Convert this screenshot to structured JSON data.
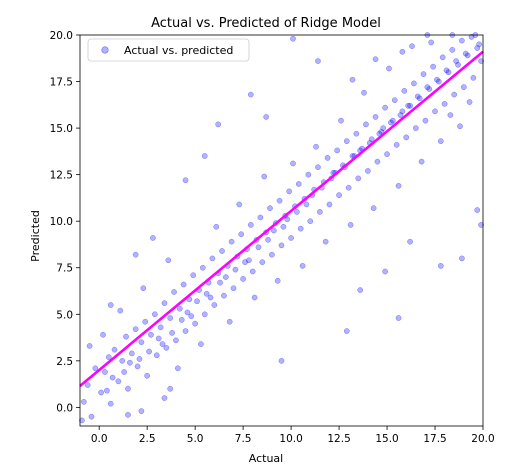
{
  "chart_data": {
    "type": "scatter",
    "title": "Actual vs. Predicted of Ridge Model",
    "xlabel": "Actual",
    "ylabel": "Predicted",
    "xlim": [
      -1.0,
      20.0
    ],
    "ylim": [
      -1.0,
      20.0
    ],
    "x_ticks": [
      0.0,
      2.5,
      5.0,
      7.5,
      10.0,
      12.5,
      15.0,
      17.5,
      20.0
    ],
    "y_ticks": [
      0.0,
      2.5,
      5.0,
      7.5,
      10.0,
      12.5,
      15.0,
      17.5,
      20.0
    ],
    "x_tick_labels": [
      "0.0",
      "2.5",
      "5.0",
      "7.5",
      "10.0",
      "12.5",
      "15.0",
      "17.5",
      "20.0"
    ],
    "y_tick_labels": [
      "0.0",
      "2.5",
      "5.0",
      "7.5",
      "10.0",
      "12.5",
      "15.0",
      "17.5",
      "20.0"
    ],
    "grid": false,
    "legend_position": "top-left",
    "series": [
      {
        "name": "Actual vs. predicted",
        "marker_color": "#0000ff",
        "marker_alpha": 0.3,
        "points": [
          [
            -0.8,
            0.3
          ],
          [
            -0.6,
            1.2
          ],
          [
            -0.4,
            -0.5
          ],
          [
            -0.2,
            2.1
          ],
          [
            0.1,
            0.8
          ],
          [
            0.3,
            1.9
          ],
          [
            0.5,
            2.7
          ],
          [
            0.6,
            0.2
          ],
          [
            0.8,
            3.1
          ],
          [
            1.0,
            1.4
          ],
          [
            1.2,
            2.5
          ],
          [
            1.4,
            3.8
          ],
          [
            1.5,
            1.0
          ],
          [
            1.7,
            2.9
          ],
          [
            1.9,
            4.2
          ],
          [
            2.0,
            2.2
          ],
          [
            2.2,
            3.5
          ],
          [
            2.4,
            4.6
          ],
          [
            2.5,
            1.7
          ],
          [
            2.7,
            3.9
          ],
          [
            2.9,
            5.0
          ],
          [
            3.0,
            2.8
          ],
          [
            3.2,
            4.3
          ],
          [
            3.4,
            5.6
          ],
          [
            3.5,
            3.2
          ],
          [
            3.7,
            4.8
          ],
          [
            3.9,
            6.2
          ],
          [
            4.0,
            3.6
          ],
          [
            4.2,
            5.3
          ],
          [
            4.4,
            6.6
          ],
          [
            4.5,
            4.1
          ],
          [
            4.7,
            5.8
          ],
          [
            4.9,
            7.1
          ],
          [
            5.0,
            4.5
          ],
          [
            5.2,
            6.3
          ],
          [
            5.4,
            7.5
          ],
          [
            5.5,
            5.0
          ],
          [
            5.7,
            6.7
          ],
          [
            5.9,
            8.0
          ],
          [
            6.0,
            5.5
          ],
          [
            6.2,
            7.2
          ],
          [
            6.4,
            8.4
          ],
          [
            6.5,
            6.0
          ],
          [
            6.7,
            7.6
          ],
          [
            6.9,
            8.9
          ],
          [
            7.0,
            6.4
          ],
          [
            7.2,
            8.1
          ],
          [
            7.4,
            9.3
          ],
          [
            7.5,
            6.9
          ],
          [
            7.7,
            8.5
          ],
          [
            7.9,
            9.8
          ],
          [
            8.0,
            7.3
          ],
          [
            8.2,
            9.0
          ],
          [
            8.4,
            10.2
          ],
          [
            8.5,
            7.8
          ],
          [
            8.7,
            9.4
          ],
          [
            8.9,
            10.7
          ],
          [
            9.0,
            8.2
          ],
          [
            9.2,
            9.9
          ],
          [
            9.4,
            11.1
          ],
          [
            9.5,
            8.7
          ],
          [
            9.7,
            10.3
          ],
          [
            9.9,
            11.6
          ],
          [
            10.0,
            9.1
          ],
          [
            10.2,
            10.8
          ],
          [
            10.4,
            12.0
          ],
          [
            10.5,
            9.6
          ],
          [
            10.7,
            11.2
          ],
          [
            10.9,
            12.5
          ],
          [
            11.0,
            10.0
          ],
          [
            11.2,
            11.7
          ],
          [
            11.4,
            12.9
          ],
          [
            11.5,
            10.5
          ],
          [
            11.7,
            12.1
          ],
          [
            11.9,
            13.4
          ],
          [
            12.0,
            10.9
          ],
          [
            12.2,
            12.6
          ],
          [
            12.4,
            13.8
          ],
          [
            12.5,
            11.4
          ],
          [
            12.7,
            13.0
          ],
          [
            12.9,
            14.3
          ],
          [
            13.0,
            11.8
          ],
          [
            13.2,
            13.5
          ],
          [
            13.4,
            14.7
          ],
          [
            13.5,
            12.3
          ],
          [
            13.7,
            13.9
          ],
          [
            13.9,
            15.2
          ],
          [
            14.0,
            12.7
          ],
          [
            14.2,
            14.4
          ],
          [
            14.4,
            15.6
          ],
          [
            14.5,
            13.2
          ],
          [
            14.7,
            14.8
          ],
          [
            14.9,
            16.1
          ],
          [
            15.0,
            13.6
          ],
          [
            15.2,
            15.3
          ],
          [
            15.4,
            16.5
          ],
          [
            15.5,
            14.1
          ],
          [
            15.7,
            15.7
          ],
          [
            15.9,
            17.0
          ],
          [
            16.0,
            14.5
          ],
          [
            16.2,
            16.2
          ],
          [
            16.4,
            17.4
          ],
          [
            16.5,
            15.0
          ],
          [
            16.7,
            16.6
          ],
          [
            16.9,
            17.9
          ],
          [
            17.0,
            15.4
          ],
          [
            17.2,
            17.1
          ],
          [
            17.4,
            18.3
          ],
          [
            17.5,
            15.9
          ],
          [
            17.7,
            17.5
          ],
          [
            17.9,
            18.8
          ],
          [
            18.0,
            16.3
          ],
          [
            18.2,
            18.0
          ],
          [
            18.4,
            19.2
          ],
          [
            18.5,
            16.8
          ],
          [
            18.7,
            18.4
          ],
          [
            18.9,
            19.7
          ],
          [
            19.0,
            17.2
          ],
          [
            19.2,
            18.9
          ],
          [
            19.4,
            19.9
          ],
          [
            19.5,
            17.7
          ],
          [
            19.7,
            19.3
          ],
          [
            19.9,
            18.6
          ],
          [
            0.2,
            3.9
          ],
          [
            1.1,
            5.2
          ],
          [
            2.3,
            6.4
          ],
          [
            3.6,
            7.9
          ],
          [
            4.1,
            2.1
          ],
          [
            5.3,
            3.4
          ],
          [
            6.1,
            9.7
          ],
          [
            6.8,
            4.6
          ],
          [
            7.3,
            10.9
          ],
          [
            8.1,
            5.9
          ],
          [
            8.6,
            12.4
          ],
          [
            9.3,
            6.8
          ],
          [
            10.1,
            13.1
          ],
          [
            10.6,
            7.6
          ],
          [
            11.3,
            14.0
          ],
          [
            11.8,
            8.9
          ],
          [
            12.6,
            15.4
          ],
          [
            13.1,
            9.8
          ],
          [
            13.8,
            16.9
          ],
          [
            14.3,
            10.7
          ],
          [
            15.1,
            18.2
          ],
          [
            15.6,
            11.9
          ],
          [
            16.3,
            19.4
          ],
          [
            16.8,
            13.2
          ],
          [
            17.3,
            19.6
          ],
          [
            17.8,
            14.3
          ],
          [
            18.3,
            15.7
          ],
          [
            18.8,
            15.1
          ],
          [
            19.3,
            16.4
          ],
          [
            19.6,
            20.0
          ],
          [
            0.4,
            0.9
          ],
          [
            0.7,
            1.6
          ],
          [
            1.3,
            1.9
          ],
          [
            1.6,
            2.4
          ],
          [
            2.1,
            2.6
          ],
          [
            2.6,
            3.0
          ],
          [
            3.1,
            3.7
          ],
          [
            3.3,
            3.4
          ],
          [
            3.8,
            4.0
          ],
          [
            4.3,
            4.7
          ],
          [
            4.6,
            5.1
          ],
          [
            4.8,
            4.9
          ],
          [
            5.1,
            5.7
          ],
          [
            5.6,
            6.1
          ],
          [
            5.8,
            5.9
          ],
          [
            6.3,
            6.7
          ],
          [
            6.6,
            7.0
          ],
          [
            7.1,
            7.4
          ],
          [
            7.6,
            7.8
          ],
          [
            7.8,
            7.9
          ],
          [
            8.3,
            8.6
          ],
          [
            8.8,
            9.0
          ],
          [
            9.1,
            9.5
          ],
          [
            9.6,
            9.7
          ],
          [
            9.8,
            10.1
          ],
          [
            10.3,
            10.5
          ],
          [
            10.8,
            10.9
          ],
          [
            11.1,
            11.4
          ],
          [
            11.6,
            11.8
          ],
          [
            12.1,
            12.3
          ],
          [
            12.3,
            12.6
          ],
          [
            12.8,
            12.9
          ],
          [
            13.3,
            13.5
          ],
          [
            13.6,
            13.8
          ],
          [
            14.1,
            14.2
          ],
          [
            14.6,
            14.7
          ],
          [
            14.8,
            15.0
          ],
          [
            15.3,
            15.4
          ],
          [
            15.8,
            15.9
          ],
          [
            16.1,
            16.2
          ],
          [
            16.6,
            16.7
          ],
          [
            17.1,
            17.2
          ],
          [
            17.6,
            17.6
          ],
          [
            18.1,
            18.1
          ],
          [
            18.6,
            18.6
          ],
          [
            19.1,
            19.0
          ],
          [
            19.8,
            19.5
          ],
          [
            9.5,
            2.5
          ],
          [
            5.5,
            13.5
          ],
          [
            4.5,
            12.2
          ],
          [
            3.7,
            1.0
          ],
          [
            12.9,
            4.1
          ],
          [
            17.8,
            7.6
          ],
          [
            15.6,
            4.8
          ],
          [
            10.1,
            19.8
          ],
          [
            11.4,
            18.6
          ],
          [
            8.7,
            15.6
          ],
          [
            16.2,
            8.9
          ],
          [
            18.9,
            8.0
          ],
          [
            19.7,
            10.6
          ],
          [
            2.8,
            9.1
          ],
          [
            1.9,
            8.2
          ],
          [
            6.2,
            15.2
          ],
          [
            7.9,
            16.8
          ],
          [
            13.6,
            6.3
          ],
          [
            14.9,
            7.3
          ],
          [
            0.6,
            5.5
          ],
          [
            -0.5,
            3.3
          ],
          [
            -0.9,
            -0.7
          ],
          [
            2.2,
            -0.2
          ],
          [
            3.4,
            0.5
          ],
          [
            1.5,
            -0.4
          ],
          [
            19.9,
            9.8
          ],
          [
            18.4,
            20.0
          ],
          [
            17.1,
            20.0
          ],
          [
            15.8,
            19.1
          ],
          [
            14.4,
            18.7
          ],
          [
            13.2,
            17.6
          ]
        ]
      }
    ],
    "fit_line": {
      "color": "#ff00ff",
      "x": [
        -1.0,
        20.0
      ],
      "y": [
        1.15,
        19.1
      ]
    },
    "colors": {
      "points": "#0000ff",
      "fit_line": "#ff00ff",
      "axes": "#000000"
    }
  }
}
